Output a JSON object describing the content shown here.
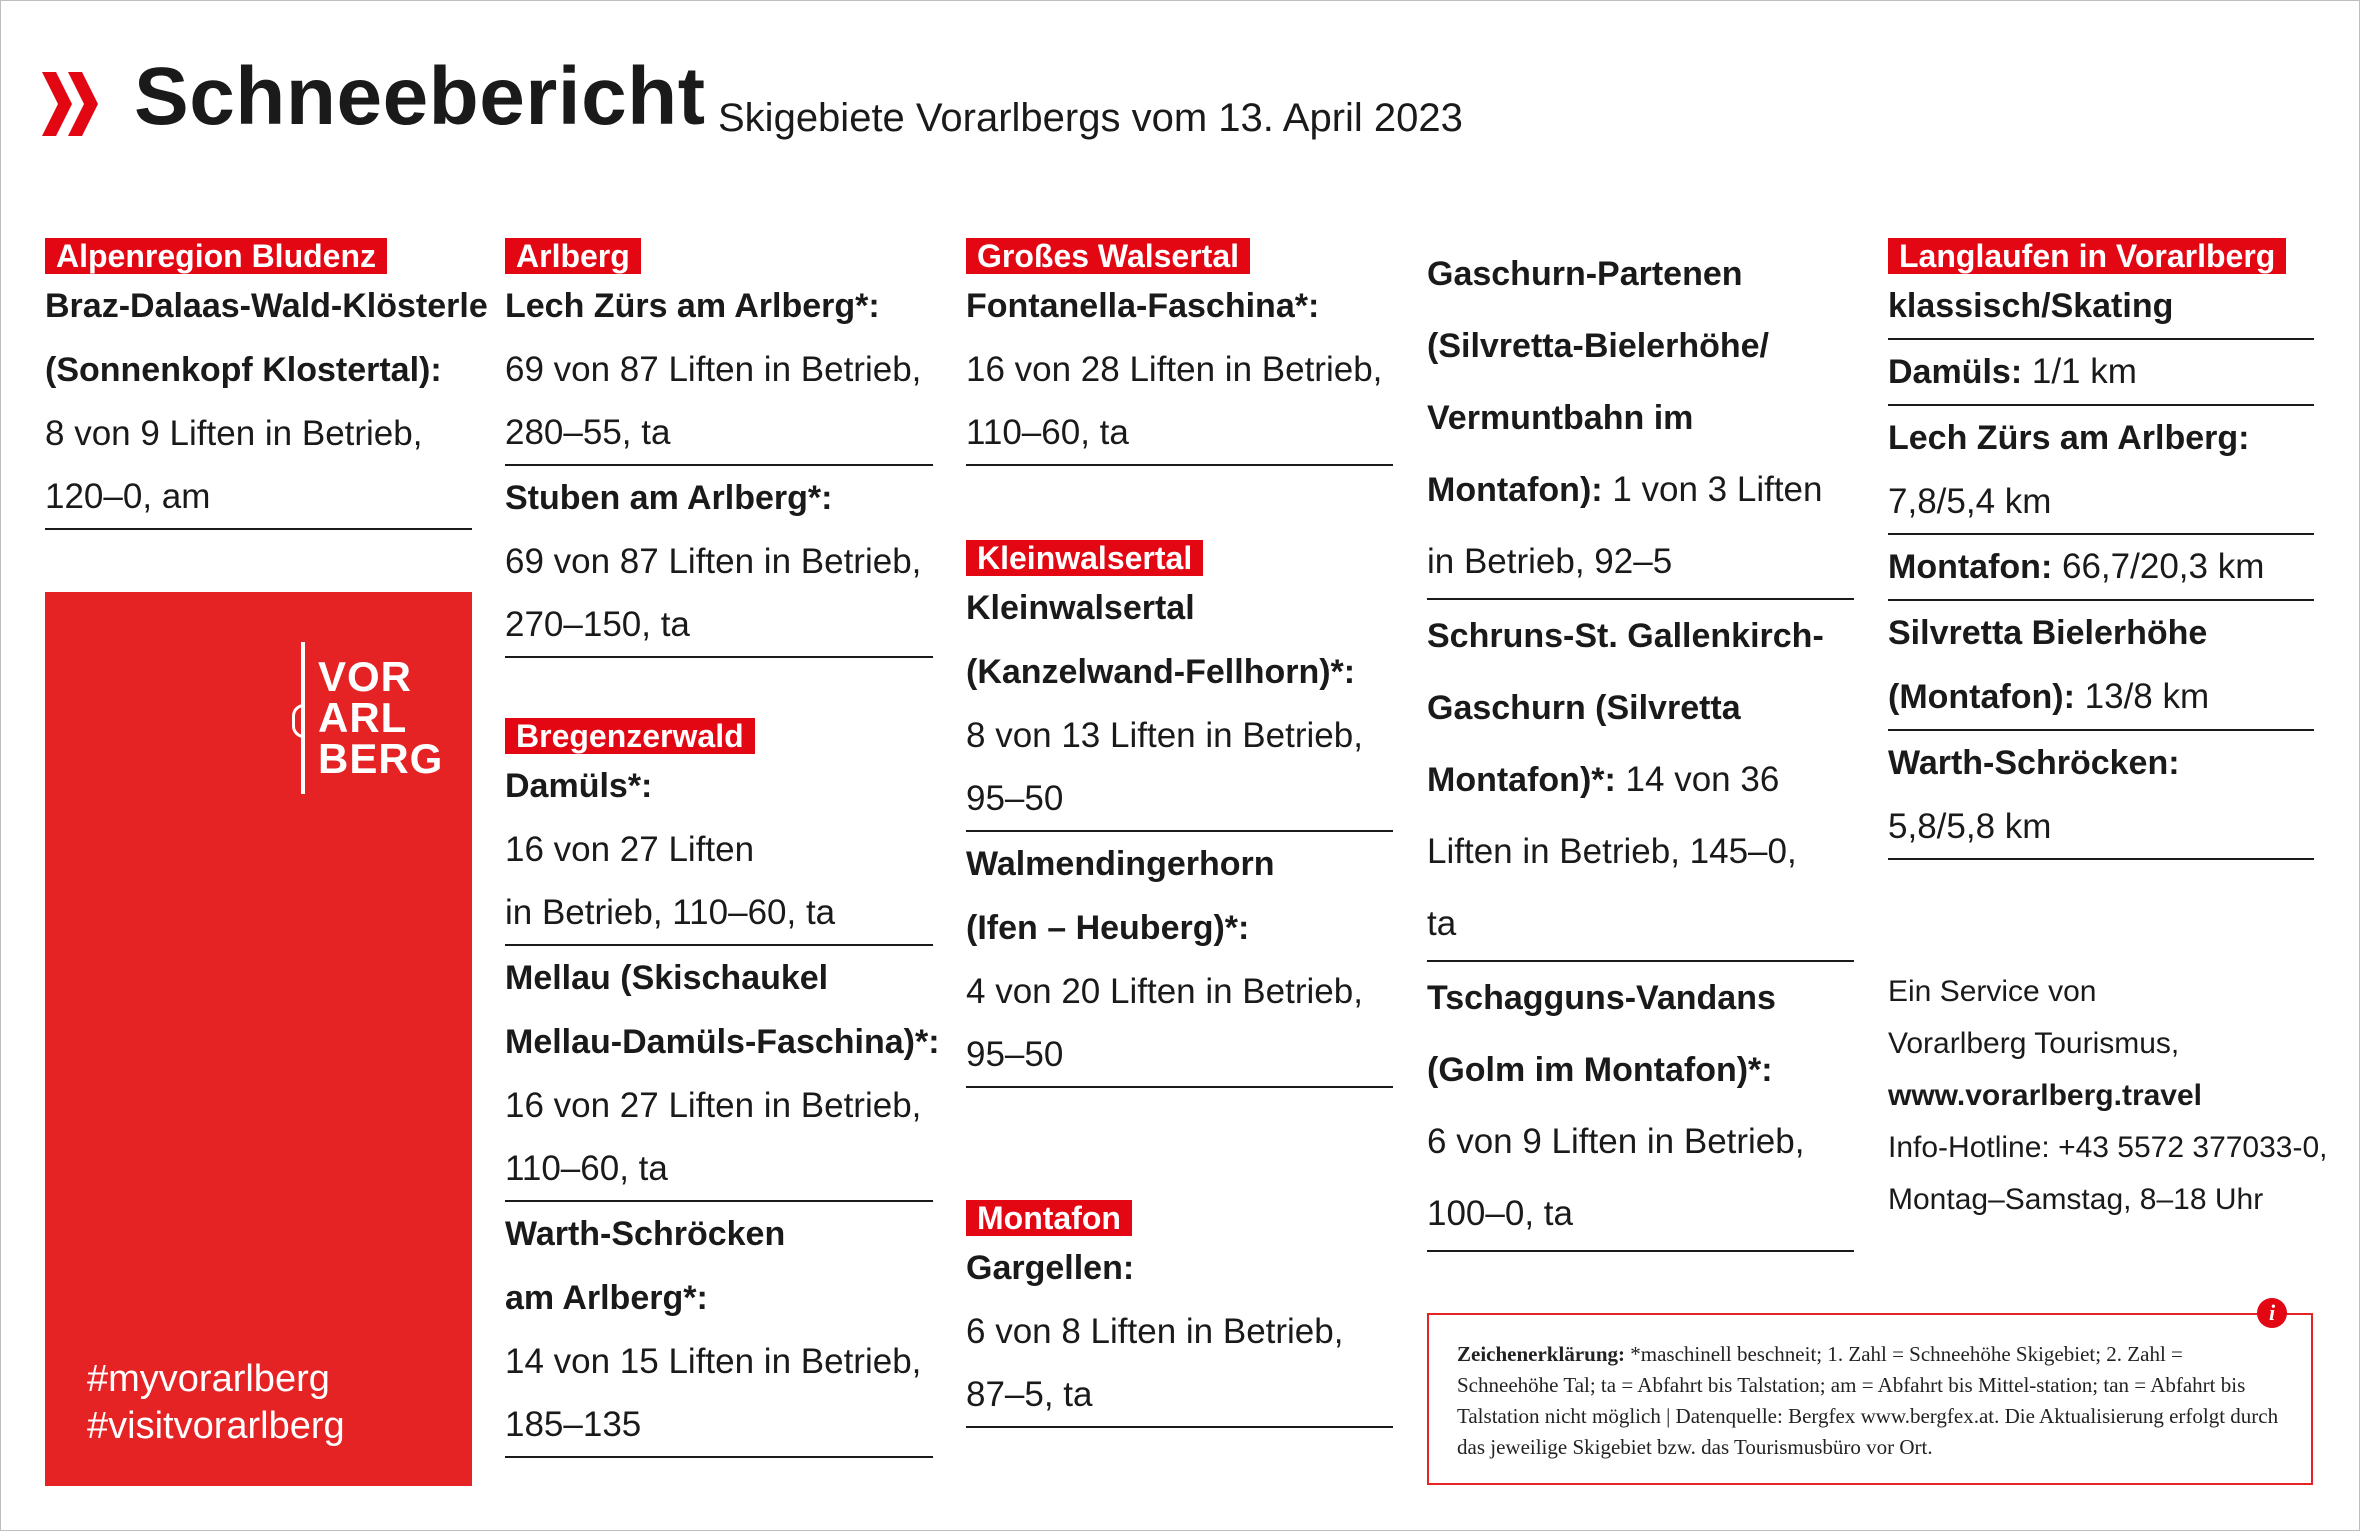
{
  "title": "Schneebericht",
  "subtitle": "Skigebiete Vorarlbergs vom 13. April 2023",
  "colors": {
    "accent": "#e30613",
    "brand_red": "#e52325"
  },
  "col1": {
    "region": "Alpenregion Bludenz",
    "entries": [
      {
        "name1": "Braz-Dalaas-Wald-Klösterle",
        "name2": "(Sonnenkopf Klostertal):",
        "status1": "8 von 9 Liften in Betrieb,",
        "status2": "120–0, am"
      }
    ]
  },
  "brand": {
    "logo_text": [
      "VOR",
      "ARL",
      "BERG"
    ],
    "hashtag1": "#myvorarlberg",
    "hashtag2": "#visitvorarlberg"
  },
  "col2": {
    "arlberg": {
      "region": "Arlberg",
      "entries": [
        {
          "name": "Lech Zürs am Arlberg*:",
          "status1": "69 von 87 Liften in Betrieb,",
          "status2": "280–55, ta"
        },
        {
          "name": "Stuben am Arlberg*:",
          "status1": "69 von 87 Liften in Betrieb,",
          "status2": "270–150, ta"
        }
      ]
    },
    "bregenzerwald": {
      "region": "Bregenzerwald",
      "entries": [
        {
          "name": "Damüls*:",
          "status1": " 16 von 27 Liften",
          "status2": "in Betrieb, 110–60, ta"
        },
        {
          "name1": "Mellau (Skischaukel",
          "name2": "Mellau-Damüls-Faschina)*:",
          "status1": "16 von 27 Liften in Betrieb,",
          "status2": "110–60, ta"
        },
        {
          "name1": "Warth-Schröcken",
          "name2": "am Arlberg*:",
          "status1": "14 von 15 Liften in Betrieb,",
          "status2": "185–135"
        }
      ]
    }
  },
  "col3": {
    "walsertal": {
      "region": "Großes Walsertal",
      "entries": [
        {
          "name": "Fontanella-Faschina*:",
          "status1": "16 von 28 Liften in Betrieb,",
          "status2": "110–60, ta"
        }
      ]
    },
    "kleinwalsertal": {
      "region": "Kleinwalsertal",
      "entries": [
        {
          "name1": "Kleinwalsertal",
          "name2": "(Kanzelwand-Fellhorn)*:",
          "status1": "8 von 13 Liften in Betrieb,",
          "status2": "95–50"
        },
        {
          "name1": "Walmendingerhorn",
          "name2": "(Ifen – Heuberg)*:",
          "status1": "4 von 20 Liften in Betrieb,",
          "status2": "95–50"
        }
      ]
    },
    "montafon": {
      "region": "Montafon",
      "entries": [
        {
          "name": "Gargellen:",
          "status1": "6 von 8 Liften in Betrieb,",
          "status2": "87–5, ta"
        }
      ]
    }
  },
  "col4": {
    "entries": [
      {
        "name1": "Gaschurn-Partenen",
        "name2": "(Silvretta-Bielerhöhe/",
        "name3": "Vermuntbahn im",
        "name4": "Montafon):",
        "status1": " 1 von 3 Liften",
        "status2": "in Betrieb, 92–5"
      },
      {
        "name1": "Schruns-St. Gallenkirch-",
        "name2": "Gaschurn (Silvretta",
        "name3": "Montafon)*:",
        "status1": " 14 von 36",
        "status2": "Liften in Betrieb, 145–0,",
        "status3": " ta"
      },
      {
        "name1": "Tschagguns-Vandans",
        "name2": "(Golm im Montafon)*:",
        "status1": "6 von 9 Liften in Betrieb,",
        "status2": "100–0, ta"
      }
    ]
  },
  "col5": {
    "region": "Langlaufen in Vorarlberg",
    "entries": [
      {
        "name": "klassisch/Skating",
        "value": ""
      },
      {
        "name": "Damüls:",
        "value": " 1/1 km"
      },
      {
        "name": "Lech Zürs am Arlberg:",
        "value": "7,8/5,4 km"
      },
      {
        "name": "Montafon:",
        "value": " 66,7/20,3 km"
      },
      {
        "name": "Silvretta Bielerhöhe",
        "name2": "(Montafon):",
        "value": " 13/8 km"
      },
      {
        "name": "Warth-Schröcken:",
        "value": "5,8/5,8 km"
      }
    ]
  },
  "service": {
    "line1": "Ein Service von",
    "line2": "Vorarlberg Tourismus,",
    "url": "www.vorarlberg.travel",
    "hotline": "Info-Hotline: +43 5572 377033-0,",
    "hours": "Montag–Samstag, 8–18 Uhr"
  },
  "legend": {
    "label": "Zeichenerklärung:",
    "text": " *maschinell beschneit; 1. Zahl = Schneehöhe Skigebiet;  2. Zahl = Schneehöhe Tal; ta = Abfahrt bis Talstation; am = Abfahrt bis Mittel-station; tan = Abfahrt bis Talstation nicht möglich | Datenquelle: Bergfex www.bergfex.at. Die Aktualisierung erfolgt durch das jeweilige Skigebiet bzw. das Tourismusbüro vor Ort.",
    "icon_letter": "i"
  }
}
